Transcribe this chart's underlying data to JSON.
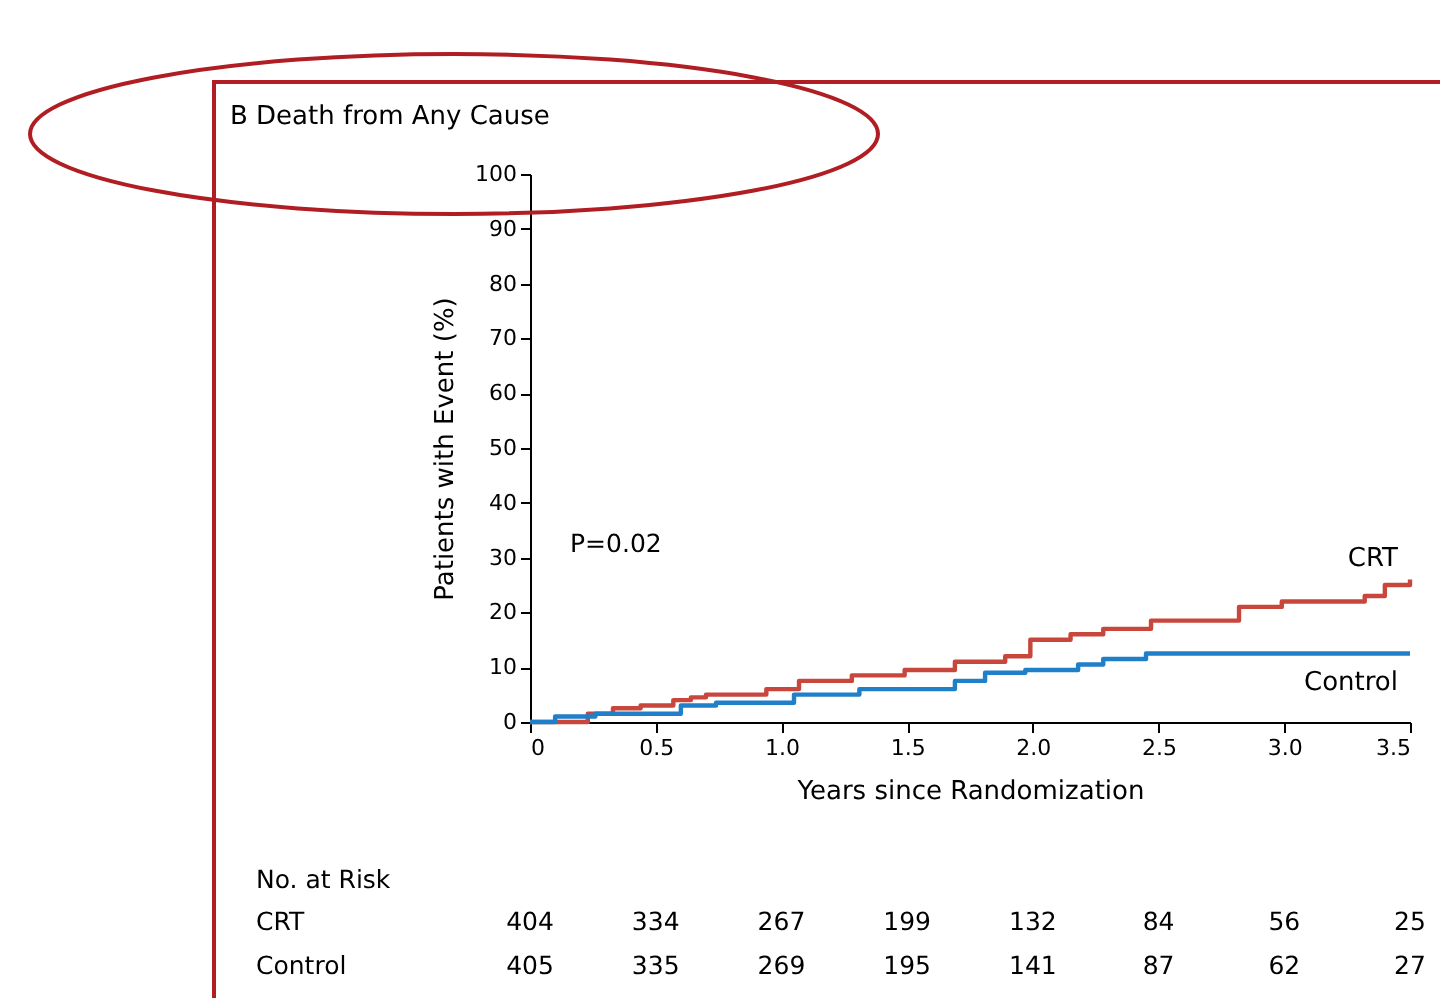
{
  "chart_data": {
    "type": "step",
    "title": "B  Death from Any Cause",
    "xlabel": "Years since Randomization",
    "ylabel": "Patients with Event (%)",
    "xlim": [
      0,
      3.5
    ],
    "xticks": [
      0,
      0.5,
      {
        "value": 1,
        "label": "1.0"
      },
      1.5,
      {
        "value": 2,
        "label": "2.0"
      },
      2.5,
      {
        "value": 3,
        "label": "3.0"
      },
      3.5
    ],
    "ylim": [
      0,
      100
    ],
    "yticks": [
      0,
      10,
      20,
      30,
      40,
      50,
      60,
      70,
      80,
      90,
      100
    ],
    "grid": false,
    "legend": false,
    "marker": "none",
    "line_style": "solid",
    "annotations": [
      "P=0.02",
      "No. at Risk",
      "CRT",
      "404",
      "334",
      "267",
      "199",
      "132",
      "84",
      "56",
      "25",
      "Control",
      "405",
      "335",
      "269",
      "195",
      "141",
      "87",
      "62",
      "27"
    ],
    "series": [
      {
        "name": "CRT",
        "color": "#c8463c",
        "x": [
          0,
          0.23,
          0.33,
          0.44,
          0.57,
          0.64,
          0.7,
          0.94,
          1.07,
          1.28,
          1.49,
          1.69,
          1.89,
          1.99,
          2.15,
          2.28,
          2.47,
          2.82,
          2.99,
          3.32,
          3.4,
          3.5
        ],
        "values": [
          0,
          1.5,
          2.5,
          3,
          4,
          4.5,
          5,
          6,
          7.5,
          8.5,
          9.5,
          11,
          12,
          15,
          16,
          17,
          18.5,
          21,
          22,
          23,
          25,
          26
        ]
      },
      {
        "name": "Control",
        "color": "#1f7fc8",
        "x": [
          0,
          0.1,
          0.26,
          0.6,
          0.74,
          1.05,
          1.31,
          1.69,
          1.81,
          1.97,
          2.18,
          2.28,
          2.45,
          3.5
        ],
        "values": [
          0,
          1,
          1.5,
          3,
          3.5,
          5,
          6,
          7.5,
          9,
          9.5,
          10.5,
          11.5,
          12.5,
          12.5
        ]
      }
    ]
  }
}
